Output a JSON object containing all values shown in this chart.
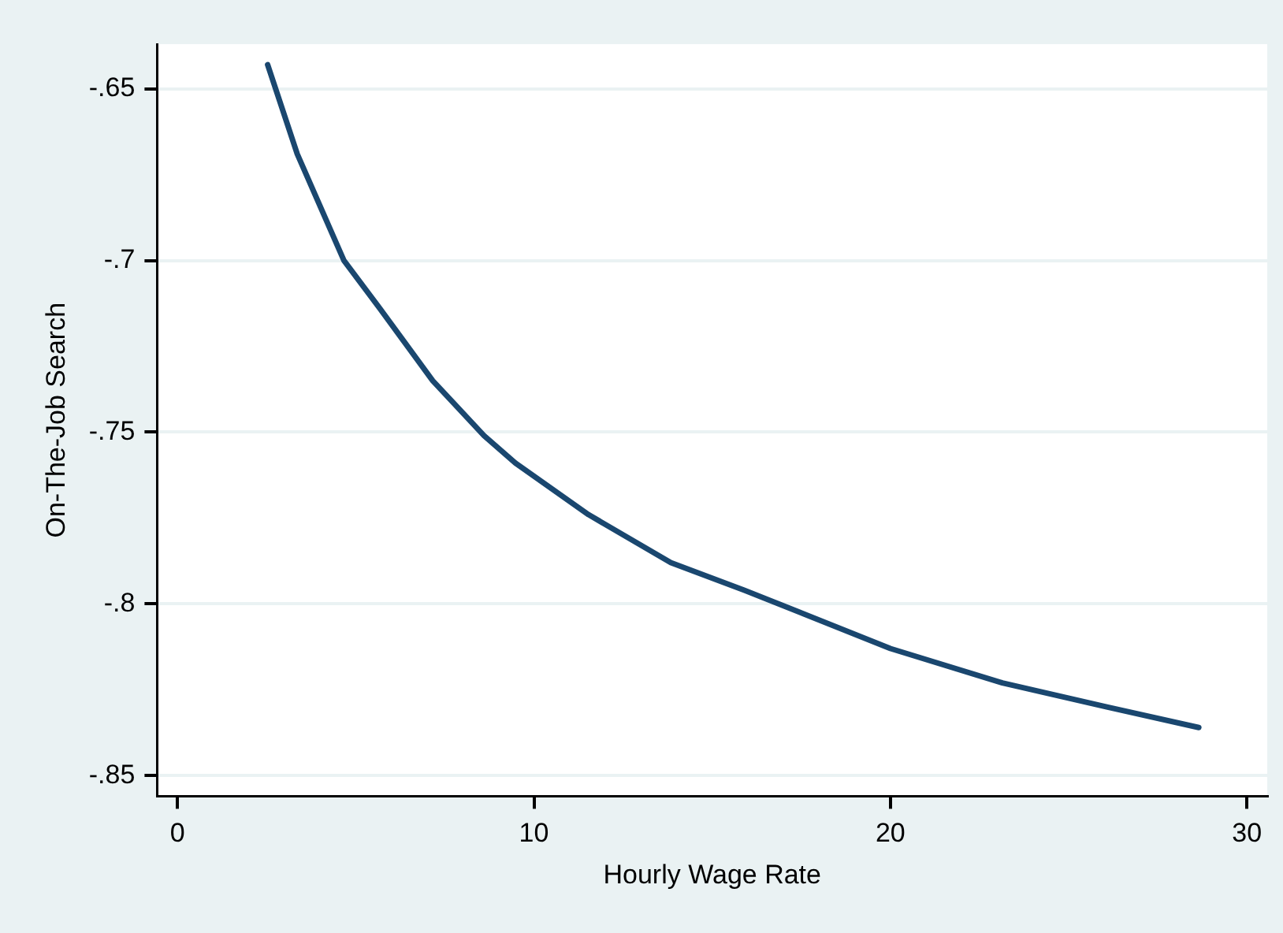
{
  "chart_data": {
    "type": "line",
    "xlabel": "Hourly Wage Rate",
    "ylabel": "On-The-Job Search",
    "x": [
      2.53,
      3.36,
      4.67,
      5.68,
      7.16,
      8.6,
      9.48,
      11.53,
      13.84,
      15.9,
      20.0,
      23.14,
      26.07,
      28.65
    ],
    "series": [
      {
        "color": "#1a476f",
        "values": [
          -0.643,
          -0.669,
          -0.7,
          -0.714,
          -0.735,
          -0.751,
          -0.759,
          -0.774,
          -0.788,
          -0.796,
          -0.813,
          -0.823,
          -0.83,
          -0.836
        ]
      }
    ],
    "xlim": [
      -0.57,
      30.57
    ],
    "xticks": [
      0,
      10,
      20,
      30
    ],
    "ylim": [
      -0.856,
      -0.637
    ],
    "yticks": [
      {
        "value": -0.85,
        "label": "-.85"
      },
      {
        "value": -0.8,
        "label": "-.8"
      },
      {
        "value": -0.75,
        "label": "-.75"
      },
      {
        "value": -0.7,
        "label": "-.7"
      },
      {
        "value": -0.65,
        "label": "-.65"
      }
    ],
    "grid": "y",
    "legend": false,
    "marker": "none",
    "line_style": "solid"
  }
}
